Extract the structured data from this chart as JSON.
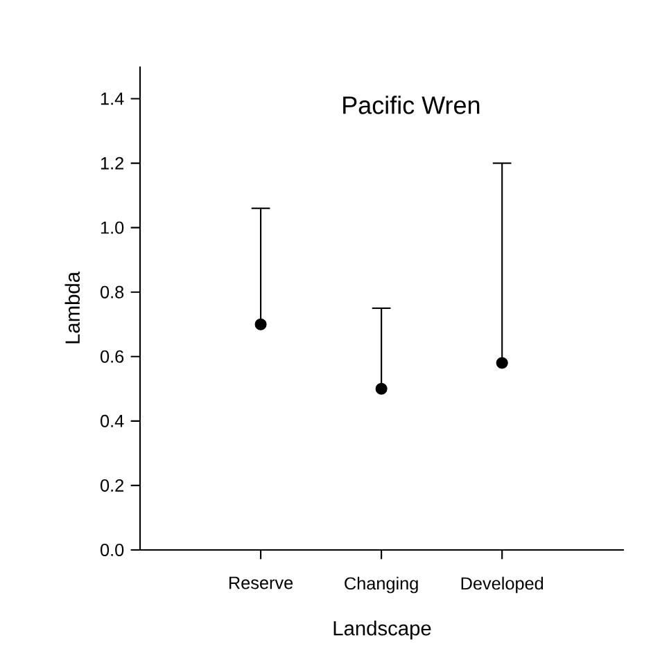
{
  "chart_data": {
    "type": "scatter",
    "title": "Pacific Wren",
    "xlabel": "Landscape",
    "ylabel": "Lambda",
    "categories": [
      "Reserve",
      "Changing",
      "Developed"
    ],
    "series": [
      {
        "color": "#000000",
        "values": [
          0.7,
          0.5,
          0.58
        ],
        "errors": [
          [
            0.7,
            1.06
          ],
          [
            0.5,
            0.75
          ],
          [
            0.58,
            1.2
          ]
        ]
      }
    ],
    "ylim": [
      0,
      1.5
    ],
    "yticks": [
      {
        "value": 0,
        "label": "0.0"
      },
      0.2,
      0.4,
      0.6,
      0.8,
      {
        "value": 1,
        "label": "1.0"
      },
      1.2,
      1.4
    ],
    "marker": "circle",
    "grid": false
  }
}
